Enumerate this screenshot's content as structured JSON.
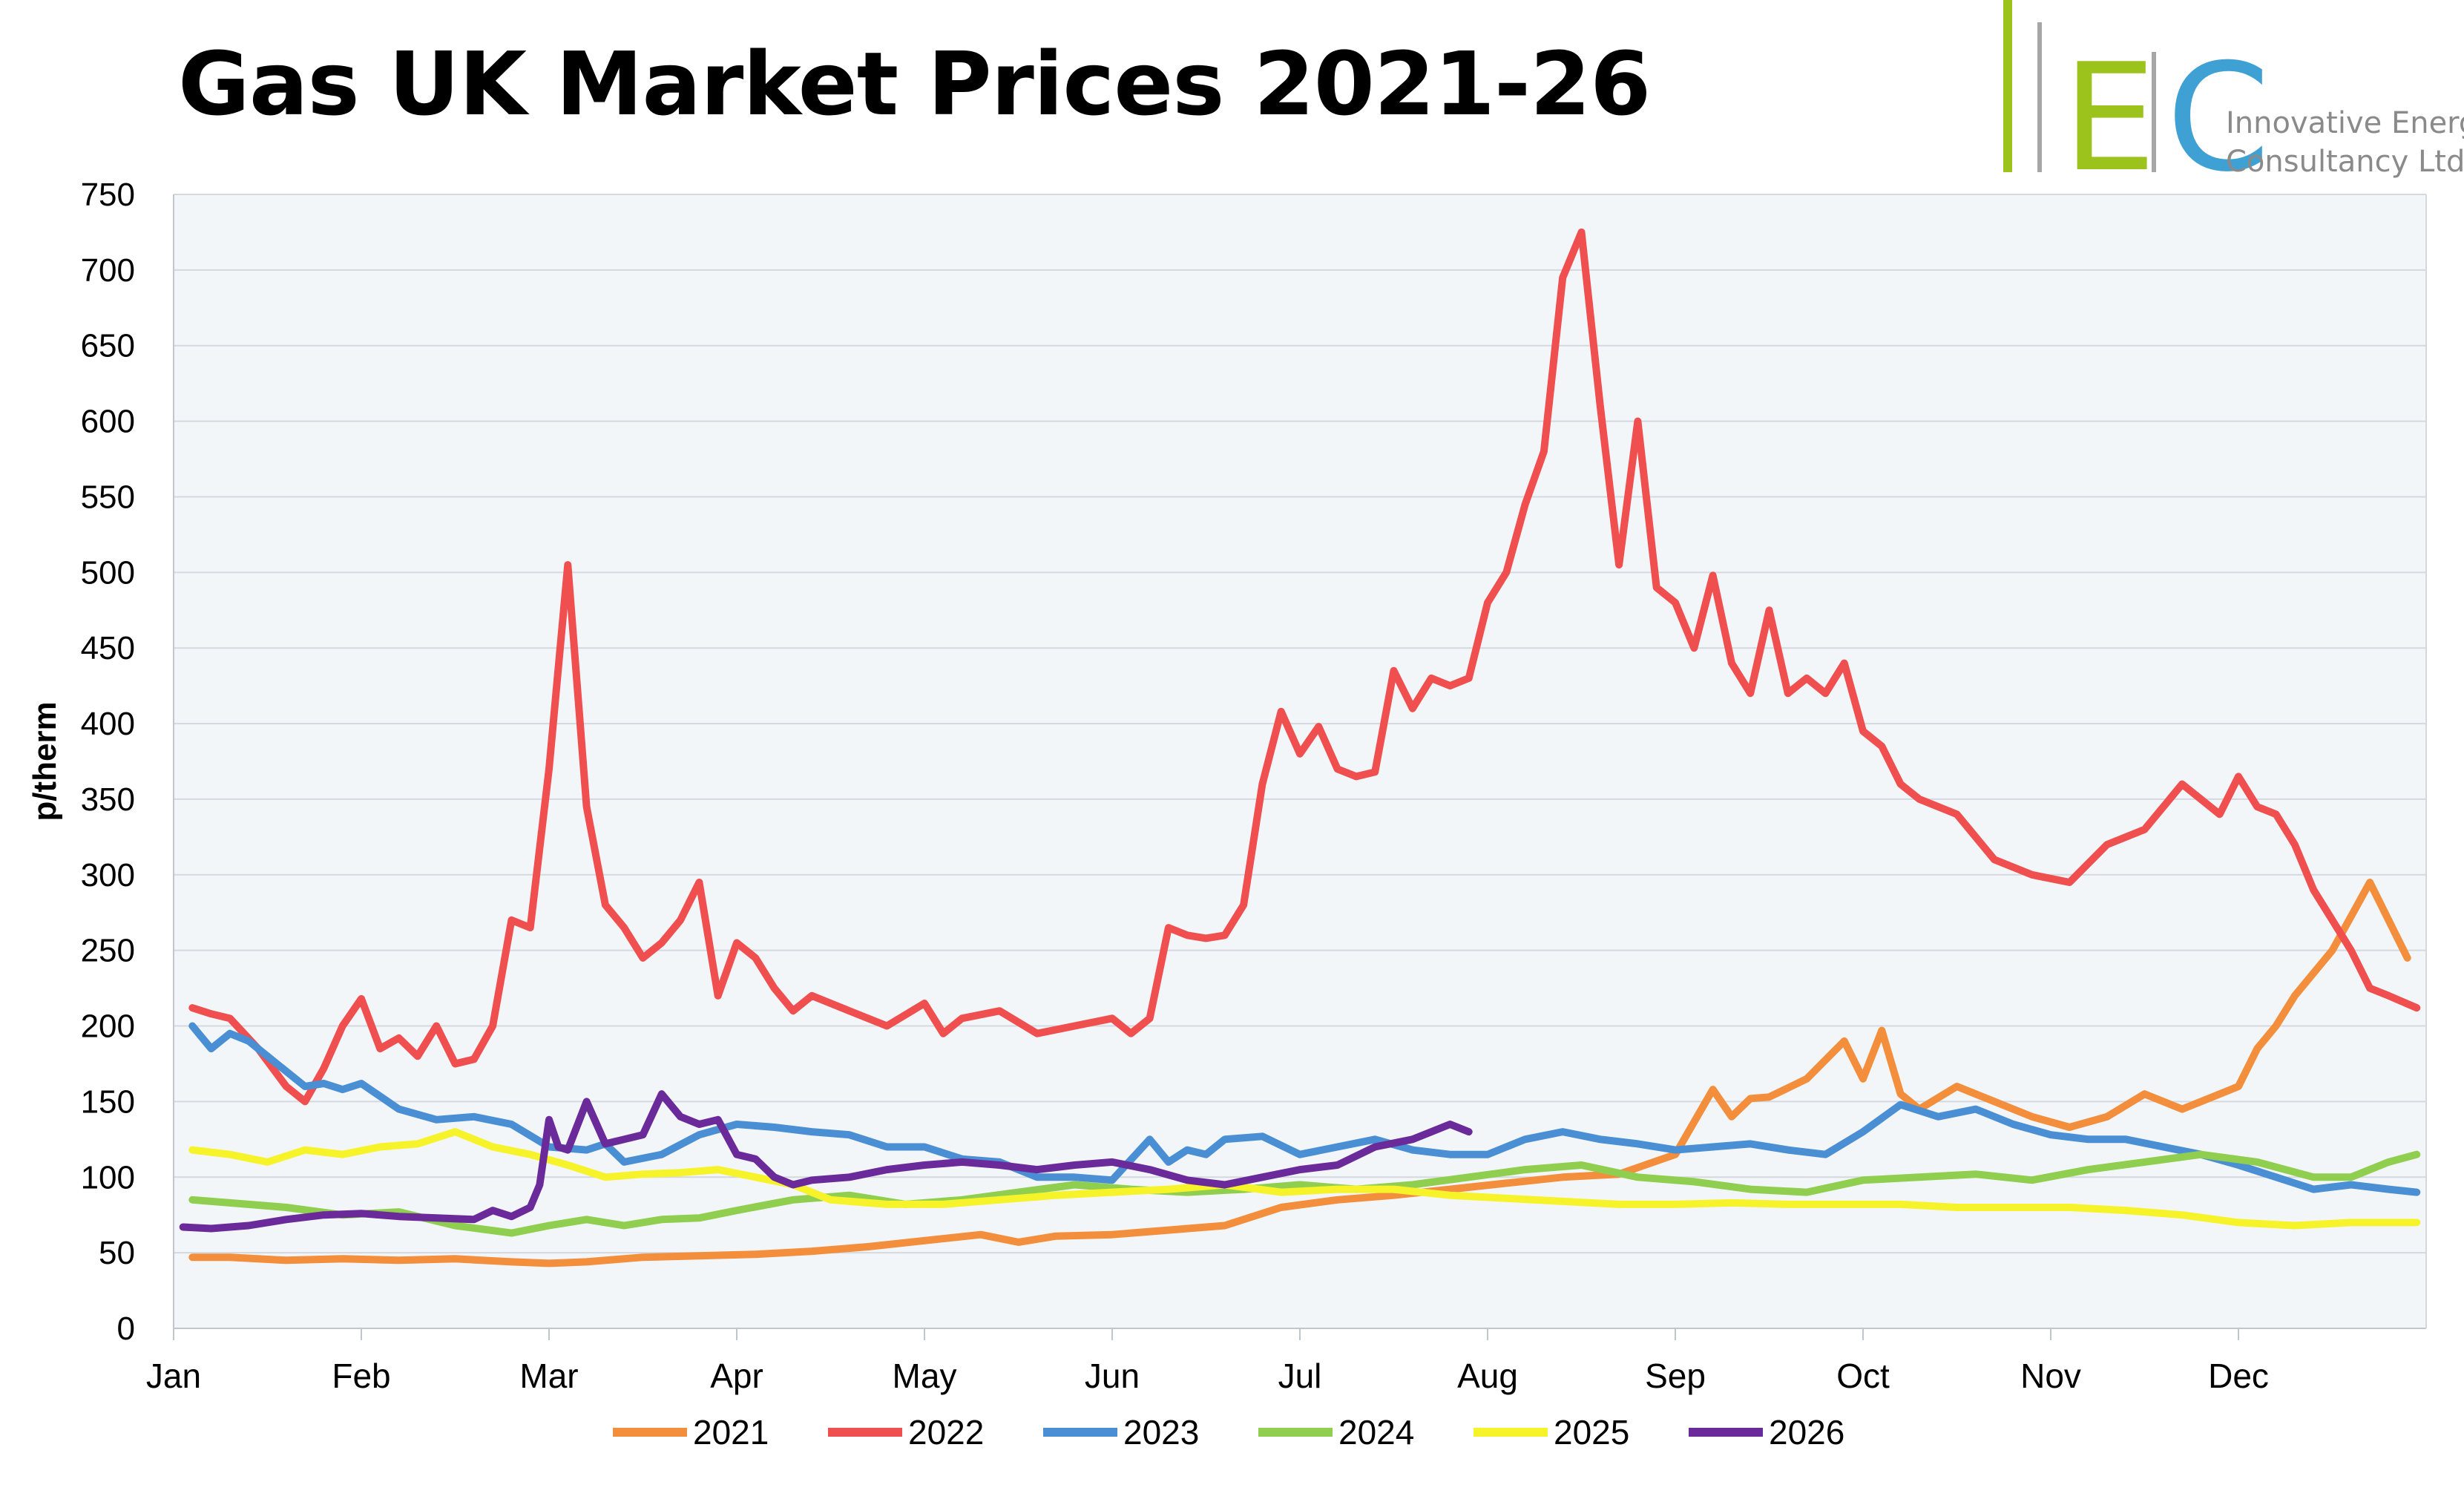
{
  "title": "Gas UK Market Prices 2021-26",
  "logo": {
    "mark_letters": "EC",
    "company_line1": "Innovative Energy",
    "company_line2": "Consultancy Ltd",
    "colors": {
      "bar_green": "#9bc31c",
      "bar_grey": "#a6a6a6",
      "letter_e": "#9bc31c",
      "letter_c": "#3fa0d3"
    }
  },
  "chart_data": {
    "type": "line",
    "title": "Gas UK Market Prices 2021-26",
    "xlabel": "",
    "ylabel": "p/therm",
    "ylim": [
      0,
      750
    ],
    "yticks": [
      0,
      50,
      100,
      150,
      200,
      250,
      300,
      350,
      400,
      450,
      500,
      550,
      600,
      650,
      700,
      750
    ],
    "xlim": [
      0,
      12
    ],
    "categories": [
      "Jan",
      "Feb",
      "Mar",
      "Apr",
      "May",
      "Jun",
      "Jul",
      "Aug",
      "Sep",
      "Oct",
      "Nov",
      "Dec"
    ],
    "grid": true,
    "legend": "bottom",
    "plot_background": "#f3f6f9",
    "series": [
      {
        "name": "2021",
        "color": "#f28e3c",
        "x": [
          0.1,
          0.3,
          0.6,
          0.9,
          1.2,
          1.5,
          1.8,
          2.0,
          2.2,
          2.5,
          2.8,
          3.1,
          3.4,
          3.7,
          4.0,
          4.3,
          4.5,
          4.7,
          5.0,
          5.3,
          5.6,
          5.9,
          6.2,
          6.5,
          6.8,
          7.1,
          7.4,
          7.7,
          8.0,
          8.2,
          8.3,
          8.4,
          8.5,
          8.7,
          8.9,
          9.0,
          9.1,
          9.2,
          9.3,
          9.5,
          9.7,
          9.9,
          10.1,
          10.3,
          10.5,
          10.7,
          10.9,
          11.0,
          11.1,
          11.2,
          11.3,
          11.5,
          11.7,
          11.9
        ],
        "values": [
          47,
          47,
          45,
          46,
          45,
          46,
          44,
          43,
          44,
          47,
          48,
          49,
          51,
          54,
          58,
          62,
          57,
          61,
          62,
          65,
          68,
          80,
          85,
          88,
          92,
          96,
          100,
          102,
          115,
          158,
          140,
          152,
          153,
          165,
          190,
          165,
          197,
          155,
          145,
          160,
          150,
          140,
          133,
          140,
          155,
          145,
          155,
          160,
          185,
          200,
          220,
          250,
          295,
          245
        ]
      },
      {
        "name": "2022",
        "color": "#f04f4f",
        "x": [
          0.1,
          0.2,
          0.3,
          0.45,
          0.6,
          0.7,
          0.8,
          0.9,
          1.0,
          1.1,
          1.2,
          1.3,
          1.4,
          1.5,
          1.6,
          1.7,
          1.8,
          1.9,
          2.0,
          2.1,
          2.2,
          2.3,
          2.4,
          2.5,
          2.6,
          2.7,
          2.8,
          2.9,
          3.0,
          3.1,
          3.2,
          3.3,
          3.4,
          3.5,
          3.6,
          3.8,
          4.0,
          4.1,
          4.2,
          4.4,
          4.6,
          4.8,
          5.0,
          5.1,
          5.2,
          5.3,
          5.4,
          5.5,
          5.6,
          5.7,
          5.8,
          5.9,
          6.0,
          6.1,
          6.2,
          6.3,
          6.4,
          6.5,
          6.6,
          6.7,
          6.8,
          6.9,
          7.0,
          7.1,
          7.2,
          7.3,
          7.4,
          7.5,
          7.6,
          7.7,
          7.8,
          7.9,
          8.0,
          8.1,
          8.2,
          8.3,
          8.4,
          8.5,
          8.6,
          8.7,
          8.8,
          8.9,
          9.0,
          9.1,
          9.2,
          9.3,
          9.5,
          9.7,
          9.9,
          10.1,
          10.3,
          10.5,
          10.7,
          10.9,
          11.0,
          11.1,
          11.2,
          11.3,
          11.4,
          11.5,
          11.6,
          11.7,
          11.8,
          11.95
        ],
        "values": [
          212,
          208,
          205,
          185,
          160,
          150,
          172,
          200,
          218,
          185,
          192,
          180,
          200,
          175,
          178,
          200,
          270,
          265,
          370,
          505,
          345,
          280,
          265,
          245,
          255,
          270,
          295,
          220,
          255,
          245,
          225,
          210,
          220,
          215,
          210,
          200,
          215,
          195,
          205,
          210,
          195,
          200,
          205,
          195,
          205,
          265,
          260,
          258,
          260,
          280,
          360,
          408,
          380,
          398,
          370,
          365,
          368,
          435,
          410,
          430,
          425,
          430,
          480,
          500,
          545,
          580,
          695,
          725,
          610,
          505,
          600,
          490,
          480,
          450,
          498,
          440,
          420,
          475,
          420,
          430,
          420,
          440,
          395,
          385,
          360,
          350,
          340,
          310,
          300,
          295,
          320,
          330,
          360,
          340,
          365,
          345,
          340,
          320,
          290,
          270,
          250,
          225,
          220,
          212
        ]
      },
      {
        "name": "2023",
        "color": "#4a8fd4",
        "x": [
          0.1,
          0.2,
          0.3,
          0.4,
          0.5,
          0.6,
          0.7,
          0.8,
          0.9,
          1.0,
          1.2,
          1.4,
          1.6,
          1.8,
          2.0,
          2.2,
          2.3,
          2.4,
          2.6,
          2.8,
          3.0,
          3.2,
          3.4,
          3.6,
          3.8,
          4.0,
          4.2,
          4.4,
          4.6,
          4.8,
          5.0,
          5.2,
          5.3,
          5.4,
          5.5,
          5.6,
          5.8,
          6.0,
          6.2,
          6.4,
          6.6,
          6.8,
          7.0,
          7.2,
          7.4,
          7.6,
          7.8,
          8.0,
          8.2,
          8.4,
          8.6,
          8.8,
          9.0,
          9.2,
          9.4,
          9.6,
          9.8,
          10.0,
          10.2,
          10.4,
          10.6,
          10.8,
          11.0,
          11.2,
          11.4,
          11.6,
          11.8,
          11.95
        ],
        "values": [
          200,
          185,
          195,
          190,
          180,
          170,
          160,
          162,
          158,
          162,
          145,
          138,
          140,
          135,
          120,
          118,
          122,
          110,
          115,
          128,
          135,
          133,
          130,
          128,
          120,
          120,
          112,
          110,
          100,
          100,
          98,
          125,
          110,
          118,
          115,
          125,
          127,
          115,
          120,
          125,
          118,
          115,
          115,
          125,
          130,
          125,
          122,
          118,
          120,
          122,
          118,
          115,
          130,
          148,
          140,
          145,
          135,
          128,
          125,
          125,
          120,
          115,
          108,
          100,
          92,
          95,
          92,
          90
        ]
      },
      {
        "name": "2024",
        "color": "#8fce4e",
        "x": [
          0.1,
          0.3,
          0.6,
          0.9,
          1.2,
          1.5,
          1.8,
          2.0,
          2.2,
          2.4,
          2.6,
          2.8,
          3.0,
          3.3,
          3.6,
          3.9,
          4.2,
          4.5,
          4.8,
          5.1,
          5.4,
          5.7,
          6.0,
          6.3,
          6.6,
          6.9,
          7.2,
          7.5,
          7.8,
          8.1,
          8.4,
          8.7,
          9.0,
          9.3,
          9.6,
          9.9,
          10.2,
          10.5,
          10.8,
          11.1,
          11.4,
          11.6,
          11.8,
          11.95
        ],
        "values": [
          85,
          83,
          80,
          75,
          77,
          68,
          63,
          68,
          72,
          68,
          72,
          73,
          78,
          85,
          88,
          82,
          85,
          90,
          95,
          92,
          90,
          92,
          95,
          92,
          95,
          100,
          105,
          108,
          100,
          97,
          92,
          90,
          98,
          100,
          102,
          98,
          105,
          110,
          115,
          110,
          100,
          100,
          110,
          115
        ]
      },
      {
        "name": "2025",
        "color": "#f7f32a",
        "x": [
          0.1,
          0.3,
          0.5,
          0.7,
          0.9,
          1.1,
          1.3,
          1.5,
          1.7,
          1.9,
          2.1,
          2.3,
          2.5,
          2.7,
          2.9,
          3.1,
          3.3,
          3.5,
          3.8,
          4.1,
          4.4,
          4.7,
          5.0,
          5.3,
          5.6,
          5.9,
          6.2,
          6.5,
          6.8,
          7.1,
          7.4,
          7.7,
          8.0,
          8.3,
          8.6,
          8.9,
          9.2,
          9.5,
          9.8,
          10.1,
          10.4,
          10.7,
          11.0,
          11.3,
          11.6,
          11.95
        ],
        "values": [
          118,
          115,
          110,
          118,
          115,
          120,
          122,
          130,
          120,
          115,
          108,
          100,
          102,
          103,
          105,
          100,
          95,
          85,
          82,
          82,
          85,
          88,
          90,
          92,
          95,
          90,
          92,
          92,
          88,
          86,
          84,
          82,
          82,
          83,
          82,
          82,
          82,
          80,
          80,
          80,
          78,
          75,
          70,
          68,
          70,
          70
        ]
      },
      {
        "name": "2026",
        "color": "#6b2a9a",
        "x": [
          0.05,
          0.2,
          0.4,
          0.6,
          0.8,
          1.0,
          1.2,
          1.4,
          1.6,
          1.7,
          1.8,
          1.9,
          1.95,
          2.0,
          2.05,
          2.1,
          2.2,
          2.3,
          2.4,
          2.5,
          2.6,
          2.7,
          2.8,
          2.9,
          3.0,
          3.1,
          3.2,
          3.3,
          3.4,
          3.6,
          3.8,
          4.0,
          4.2,
          4.4,
          4.6,
          4.8,
          5.0,
          5.2,
          5.4,
          5.6,
          5.8,
          6.0,
          6.2,
          6.4,
          6.6,
          6.8,
          6.9
        ],
        "values": [
          67,
          66,
          68,
          72,
          75,
          76,
          74,
          73,
          72,
          78,
          74,
          80,
          95,
          138,
          120,
          118,
          150,
          122,
          125,
          128,
          155,
          140,
          135,
          138,
          115,
          112,
          100,
          95,
          98,
          100,
          105,
          108,
          110,
          108,
          105,
          108,
          110,
          105,
          98,
          95,
          100,
          105,
          108,
          120,
          125,
          135,
          130
        ]
      }
    ]
  }
}
